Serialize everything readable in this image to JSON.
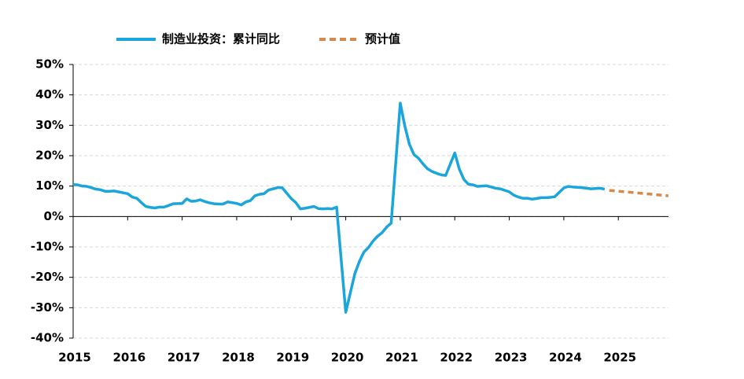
{
  "chart_data": {
    "type": "line",
    "series": [
      {
        "name": "制造业投资：累计同比",
        "color": "#1aa6dc",
        "style": "solid",
        "x": [
          2015,
          2015.083,
          2015.167,
          2015.25,
          2015.333,
          2015.417,
          2015.5,
          2015.583,
          2015.667,
          2015.75,
          2015.833,
          2016,
          2016.083,
          2016.167,
          2016.25,
          2016.333,
          2016.417,
          2016.5,
          2016.583,
          2016.667,
          2016.75,
          2016.833,
          2017,
          2017.083,
          2017.167,
          2017.25,
          2017.333,
          2017.417,
          2017.5,
          2017.583,
          2017.667,
          2017.75,
          2017.833,
          2018,
          2018.083,
          2018.167,
          2018.25,
          2018.333,
          2018.417,
          2018.5,
          2018.583,
          2018.667,
          2018.75,
          2018.833,
          2019,
          2019.083,
          2019.167,
          2019.25,
          2019.333,
          2019.417,
          2019.5,
          2019.583,
          2019.667,
          2019.75,
          2019.833,
          2020,
          2020.083,
          2020.167,
          2020.25,
          2020.333,
          2020.417,
          2020.5,
          2020.583,
          2020.667,
          2020.75,
          2020.833,
          2021,
          2021.083,
          2021.167,
          2021.25,
          2021.333,
          2021.417,
          2021.5,
          2021.583,
          2021.667,
          2021.75,
          2021.833,
          2022,
          2022.083,
          2022.167,
          2022.25,
          2022.333,
          2022.417,
          2022.5,
          2022.583,
          2022.667,
          2022.75,
          2022.833,
          2023,
          2023.083,
          2023.167,
          2023.25,
          2023.333,
          2023.417,
          2023.5,
          2023.583,
          2023.667,
          2023.75,
          2023.833,
          2024,
          2024.083,
          2024.167,
          2024.25,
          2024.333,
          2024.417,
          2024.5,
          2024.583,
          2024.667,
          2024.75
        ],
        "values": [
          10.5,
          10.4,
          10.0,
          9.9,
          9.5,
          9.0,
          8.8,
          8.3,
          8.3,
          8.4,
          8.1,
          7.5,
          6.4,
          6.0,
          4.6,
          3.3,
          3.0,
          2.8,
          3.1,
          3.1,
          3.6,
          4.2,
          4.3,
          5.8,
          5.0,
          5.1,
          5.5,
          4.9,
          4.5,
          4.2,
          4.1,
          4.1,
          4.8,
          4.3,
          3.8,
          4.8,
          5.2,
          6.8,
          7.3,
          7.5,
          8.7,
          9.1,
          9.5,
          9.5,
          5.9,
          4.6,
          2.5,
          2.7,
          3.0,
          3.3,
          2.6,
          2.5,
          2.6,
          2.5,
          3.1,
          -31.5,
          -25.2,
          -18.8,
          -14.8,
          -11.7,
          -10.2,
          -8.1,
          -6.5,
          -5.3,
          -3.5,
          -2.2,
          37.3,
          29.8,
          23.8,
          20.4,
          19.2,
          17.3,
          15.7,
          14.8,
          14.2,
          13.7,
          13.5,
          20.9,
          15.6,
          12.2,
          10.6,
          10.4,
          9.9,
          10.0,
          10.1,
          9.7,
          9.3,
          9.1,
          8.1,
          7.0,
          6.4,
          6.0,
          6.0,
          5.7,
          5.9,
          6.2,
          6.2,
          6.3,
          6.5,
          9.4,
          9.9,
          9.7,
          9.6,
          9.5,
          9.3,
          9.1,
          9.2,
          9.3,
          9.0
        ]
      },
      {
        "name": "预计值",
        "color": "#d8894a",
        "style": "dashed",
        "x": [
          2024.833,
          2025.917
        ],
        "values": [
          8.6,
          6.8
        ]
      }
    ],
    "xlim": [
      2015,
      2025.92
    ],
    "xticks": [
      2015,
      2016,
      2017,
      2018,
      2019,
      2020,
      2021,
      2022,
      2023,
      2024,
      2025
    ],
    "ylim": [
      -40,
      50
    ],
    "yticks": [
      {
        "value": -40,
        "label": "-40%"
      },
      {
        "value": -30,
        "label": "-30%"
      },
      {
        "value": -20,
        "label": "-20%"
      },
      {
        "value": -10,
        "label": "-10%"
      },
      {
        "value": 0,
        "label": "0%"
      },
      {
        "value": 10,
        "label": "10%"
      },
      {
        "value": 20,
        "label": "20%"
      },
      {
        "value": 30,
        "label": "30%"
      },
      {
        "value": 40,
        "label": "40%"
      },
      {
        "value": 50,
        "label": "50%"
      }
    ],
    "grid": true
  }
}
